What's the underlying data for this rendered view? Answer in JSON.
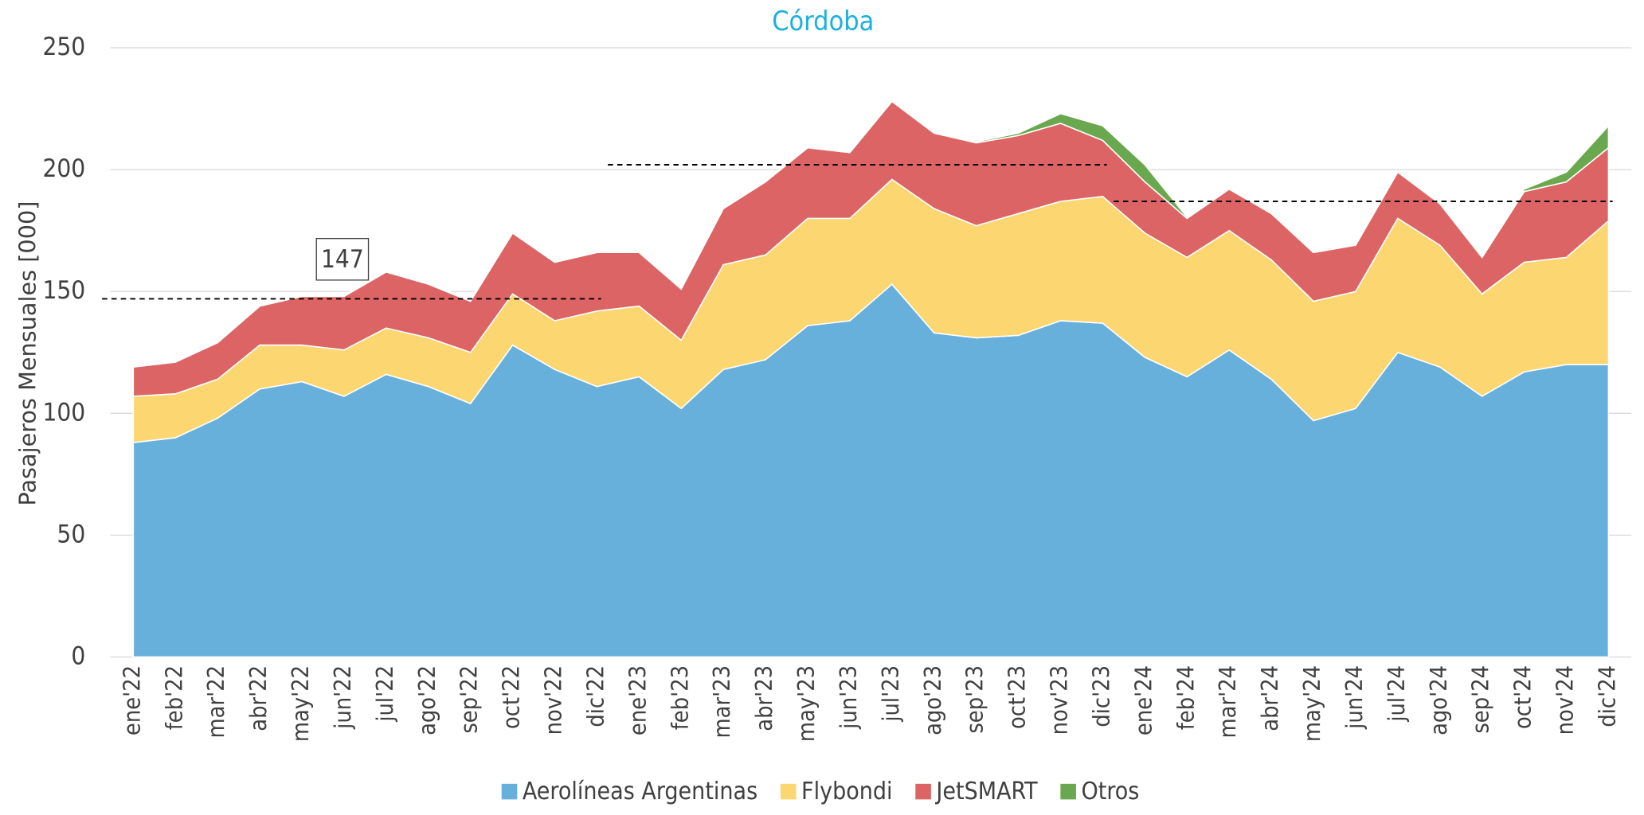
{
  "chart_data": {
    "type": "stacked_area",
    "title": "Córdoba",
    "y_label": "Pasajeros Mensuales [000]",
    "categories": [
      "ene'22",
      "feb'22",
      "mar'22",
      "abr'22",
      "may'22",
      "jun'22",
      "jul'22",
      "ago'22",
      "sep'22",
      "oct'22",
      "nov'22",
      "dic'22",
      "ene'23",
      "feb'23",
      "mar'23",
      "abr'23",
      "may'23",
      "jun'23",
      "jul'23",
      "ago'23",
      "sep'23",
      "oct'23",
      "nov'23",
      "dic'23",
      "ene'24",
      "feb'24",
      "mar'24",
      "abr'24",
      "may'24",
      "jun'24",
      "jul'24",
      "ago'24",
      "sep'24",
      "oct'24",
      "nov'24",
      "dic'24"
    ],
    "series": [
      {
        "name": "Aerolíneas Argentinas",
        "color": "#68b0dc",
        "values": [
          88,
          90,
          98,
          110,
          113,
          107,
          116,
          111,
          104,
          128,
          118,
          111,
          115,
          102,
          118,
          122,
          136,
          138,
          153,
          133,
          131,
          132,
          138,
          137,
          123,
          115,
          126,
          114,
          97,
          102,
          125,
          119,
          107,
          117,
          120,
          120
        ]
      },
      {
        "name": "Flybondi",
        "color": "#fcd671",
        "values": [
          19,
          18,
          16,
          18,
          15,
          19,
          19,
          20,
          21,
          21,
          20,
          31,
          29,
          28,
          43,
          43,
          44,
          42,
          43,
          51,
          46,
          50,
          49,
          52,
          51,
          49,
          49,
          49,
          49,
          48,
          55,
          50,
          42,
          45,
          44,
          59
        ]
      },
      {
        "name": "JetSMART",
        "color": "#dc6464",
        "values": [
          12,
          13,
          15,
          16,
          20,
          22,
          23,
          22,
          21,
          25,
          24,
          24,
          22,
          21,
          23,
          30,
          29,
          27,
          32,
          31,
          34,
          32,
          32,
          23,
          21,
          16,
          17,
          19,
          20,
          19,
          19,
          17,
          15,
          29,
          31,
          30
        ]
      },
      {
        "name": "Otros",
        "color": "#6aa84f",
        "values": [
          0.5,
          0.5,
          0.5,
          0.5,
          0.5,
          0.5,
          0.5,
          0.5,
          0.5,
          0.5,
          0.5,
          0.5,
          0.5,
          0.5,
          0.5,
          0.5,
          0.5,
          0.5,
          0.5,
          0.5,
          0.5,
          1,
          4,
          6,
          7,
          0.5,
          0.5,
          0.5,
          0.5,
          0.5,
          0.5,
          0.5,
          0.5,
          1,
          4,
          9
        ]
      }
    ],
    "reference_lines": [
      {
        "value": 147,
        "label": "147",
        "start": "ene'22",
        "end": "dic'22"
      },
      {
        "value": 202,
        "start": "ene'23",
        "end": "dic'23"
      },
      {
        "value": 187,
        "start": "ene'24",
        "end": "dic'24"
      }
    ],
    "ylim": [
      0,
      250
    ],
    "yticks": [
      0,
      50,
      100,
      150,
      200,
      250
    ],
    "grid": true,
    "legend": "bottom"
  }
}
